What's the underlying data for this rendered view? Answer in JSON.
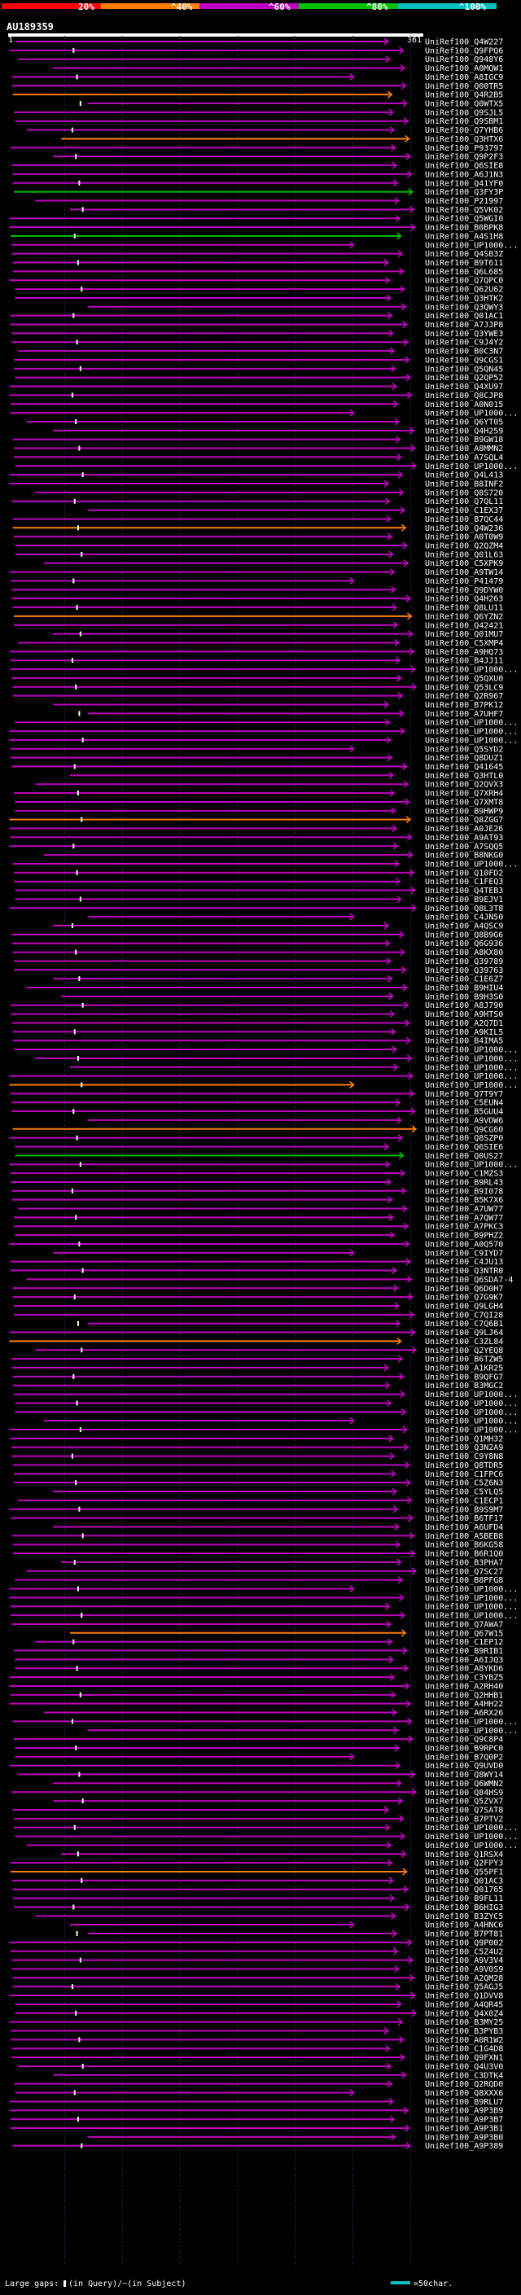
{
  "chart_data": {
    "type": "alignment-overview",
    "query": {
      "name": "AU189359",
      "start": 1,
      "end": 361
    },
    "identity_scale": {
      "ticks": [
        "20%",
        "^40%",
        "^60%",
        "^80%",
        "^100%"
      ],
      "colors": [
        "#ff0000",
        "#ff7f00",
        "#c000c0",
        "#00c000",
        "#00c0c0"
      ]
    },
    "hit_colors": {
      "default": "#c000c0",
      "high": "#ff7f00",
      "higher": "#00c000"
    },
    "legend": {
      "gaps_label": "Large gaps:",
      "query_gap": "(in Query)",
      "subject_gap": "(in Subject)",
      "scale_label": "=50char."
    },
    "hits": [
      "UniRef100_Q4W227",
      "UniRef100_Q9FPQ6",
      "UniRef100_Q948Y6",
      "UniRef100_A0MQW1",
      "UniRef100_A8IGC9",
      "UniRef100_Q00TR5",
      "UniRef100_Q4R2B5",
      "UniRef100_Q0WTX5",
      "UniRef100_Q9SJL5",
      "UniRef100_Q9SBM1",
      "UniRef100_Q7YHB6",
      "UniRef100_Q3HTX6",
      "UniRef100_P93797",
      "UniRef100_Q9P2F3",
      "UniRef100_Q6SIE8",
      "UniRef100_A6J1N3",
      "UniRef100_Q41YF0",
      "UniRef100_Q3FY3P",
      "UniRef100_P21997",
      "UniRef100_Q5VK02",
      "UniRef100_Q5WGI0",
      "UniRef100_B0BPK8",
      "UniRef100_A4S1H8",
      "UniRef100_UP1000...",
      "UniRef100_Q4SB3Z",
      "UniRef100_B9T611",
      "UniRef100_Q6L685",
      "UniRef100_Q7QPC0",
      "UniRef100_Q62U62",
      "UniRef100_Q3HTK2",
      "UniRef100_Q3QWY3",
      "UniRef100_Q01AC1",
      "UniRef100_A7JJP8",
      "UniRef100_Q3YWE3",
      "UniRef100_C9J4Y2",
      "UniRef100_B0C3N7",
      "UniRef100_Q9CGS1",
      "UniRef100_Q5QN45",
      "UniRef100_Q2QP52",
      "UniRef100_Q4XU97",
      "UniRef100_Q8CJP8",
      "UniRef100_A0N015",
      "UniRef100_UP1000...",
      "UniRef100_Q6YT05",
      "UniRef100_Q4H259",
      "UniRef100_B9GW18",
      "UniRef100_A8MMN2",
      "UniRef100_A7SQL4",
      "UniRef100_UP1000...",
      "UniRef100_Q4L413",
      "UniRef100_B8INF2",
      "UniRef100_Q8S720",
      "UniRef100_Q7QL11",
      "UniRef100_C1EX37",
      "UniRef100_B7QC44",
      "UniRef100_Q4W236",
      "UniRef100_A0T0W9",
      "UniRef100_Q2QZM4",
      "UniRef100_Q01L63",
      "UniRef100_C5XPK9",
      "UniRef100_A9TW14",
      "UniRef100_P41479",
      "UniRef100_Q9DYW0",
      "UniRef100_Q4H263",
      "UniRef100_Q8LU11",
      "UniRef100_Q6YZN2",
      "UniRef100_Q42421",
      "UniRef100_Q01MU7",
      "UniRef100_C5XMP4",
      "UniRef100_A9HQ73",
      "UniRef100_B4JJ11",
      "UniRef100_UP1000...",
      "UniRef100_Q5QXU0",
      "UniRef100_Q53LC9",
      "UniRef100_Q2R967",
      "UniRef100_B7PK12",
      "UniRef100_A7UHF7",
      "UniRef100_UP1000...",
      "UniRef100_UP1000...",
      "UniRef100_UP1000...",
      "UniRef100_Q5SYD2",
      "UniRef100_Q8DUZ1",
      "UniRef100_Q41645",
      "UniRef100_Q3HTL0",
      "UniRef100_Q2QVX3",
      "UniRef100_Q7XRH4",
      "UniRef100_Q7XMT8",
      "UniRef100_B9HWP9",
      "UniRef100_Q8ZGG7",
      "UniRef100_A0JE26",
      "UniRef100_A9AT93",
      "UniRef100_A7SQQ5",
      "UniRef100_B8NKG0",
      "UniRef100_UP1000...",
      "UniRef100_Q10FD2",
      "UniRef100_C1FEQ3",
      "UniRef100_Q4TEB3",
      "UniRef100_B9EJV1",
      "UniRef100_Q8L3T8",
      "UniRef100_C4JN50",
      "UniRef100_A4QSC9",
      "UniRef100_Q8B9G6",
      "UniRef100_Q6G936",
      "UniRef100_A8KX80",
      "UniRef100_Q39789",
      "UniRef100_Q39763",
      "UniRef100_C1E6Z7",
      "UniRef100_B9HIU4",
      "UniRef100_B9H3S0",
      "UniRef100_A8J790",
      "UniRef100_A9HTS0",
      "UniRef100_A2Q7D1",
      "UniRef100_A9KIL5",
      "UniRef100_B4IMA5",
      "UniRef100_UP1000...",
      "UniRef100_UP1000...",
      "UniRef100_UP1000...",
      "UniRef100_UP1000...",
      "UniRef100_UP1000...",
      "UniRef100_Q7T9Y7",
      "UniRef100_C5EUN4",
      "UniRef100_B5GUU4",
      "UniRef100_A9VDW6",
      "UniRef100_Q9CG60",
      "UniRef100_Q8SZP0",
      "UniRef100_Q6SIE6",
      "UniRef100_Q0US27",
      "UniRef100_UP1000...",
      "UniRef100_C1MZS3",
      "UniRef100_B9RL43",
      "UniRef100_B9I078",
      "UniRef100_B5K7X6",
      "UniRef100_A7UW77",
      "UniRef100_A7QW77",
      "UniRef100_A7PKC3",
      "UniRef100_B9PHZ2",
      "UniRef100_A0Q570",
      "UniRef100_C9IYD7",
      "UniRef100_C4JU13",
      "UniRef100_Q3NTR0",
      "UniRef100_Q6SDA7-4",
      "UniRef100_Q6D0H7",
      "UniRef100_Q7G9K7",
      "UniRef100_Q9LGH4",
      "UniRef100_C7QI28",
      "UniRef100_C7Q6B1",
      "UniRef100_Q9LJ64",
      "UniRef100_C3ZL84",
      "UniRef100_Q2YEQ8",
      "UniRef100_B6TZW5",
      "UniRef100_A1KR25",
      "UniRef100_B9QFG7",
      "UniRef100_B3MGC2",
      "UniRef100_UP1000...",
      "UniRef100_UP1000...",
      "UniRef100_UP1000...",
      "UniRef100_UP1000...",
      "UniRef100_UP1000...",
      "UniRef100_Q1MH32",
      "UniRef100_Q3N2A9",
      "UniRef100_C9Y8N8",
      "UniRef100_Q8TDR5",
      "UniRef100_C1FPC6",
      "UniRef100_C5Z6N3",
      "UniRef100_C5YLQ5",
      "UniRef100_C1ECP1",
      "UniRef100_B9S9M7",
      "UniRef100_B6TF17",
      "UniRef100_A6UFD4",
      "UniRef100_A5BEB8",
      "UniRef100_B6KG58",
      "UniRef100_B6R1Q0",
      "UniRef100_B3PHA7",
      "UniRef100_Q7SC27",
      "UniRef100_B8PFG8",
      "UniRef100_UP1000...",
      "UniRef100_UP1000...",
      "UniRef100_UP1000...",
      "UniRef100_UP1000...",
      "UniRef100_Q7AWA7",
      "UniRef100_Q67W15",
      "UniRef100_C1EP12",
      "UniRef100_B9RIB1",
      "UniRef100_A6IJQ3",
      "UniRef100_A8YKD6",
      "UniRef100_C3YBZ5",
      "UniRef100_A2RH40",
      "UniRef100_Q2HHB1",
      "UniRef100_A4HH22",
      "UniRef100_A6RX26",
      "UniRef100_UP1000...",
      "UniRef100_UP1000...",
      "UniRef100_Q9C8P4",
      "UniRef100_B9RPC0",
      "UniRef100_B7Q0P2",
      "UniRef100_Q9UVD0",
      "UniRef100_Q8WY14",
      "UniRef100_Q6WMN2",
      "UniRef100_Q84HS9",
      "UniRef100_Q5ZVX7",
      "UniRef100_Q7SAT8",
      "UniRef100_B7PTV2",
      "UniRef100_UP1000...",
      "UniRef100_UP1000...",
      "UniRef100_UP1000...",
      "UniRef100_Q1RSX4",
      "UniRef100_Q2FPY3",
      "UniRef100_Q55PF1",
      "UniRef100_Q01AC3",
      "UniRef100_Q01765",
      "UniRef100_B9FL11",
      "UniRef100_B6HIG3",
      "UniRef100_B3ZYC5",
      "UniRef100_A4HNC6",
      "UniRef100_B7PT81",
      "UniRef100_Q9P002",
      "UniRef100_C5Z4U2",
      "UniRef100_A9V3V4",
      "UniRef100_A9V0S9",
      "UniRef100_A2QM28",
      "UniRef100_Q5AGJ5",
      "UniRef100_Q1DVV8",
      "UniRef100_A4QR45",
      "UniRef100_Q4X0Z4",
      "UniRef100_B3MY25",
      "UniRef100_B3PYB3",
      "UniRef100_A0R1W2",
      "UniRef100_C1G4D8",
      "UniRef100_Q9FXN1",
      "UniRef100_Q4U3V0",
      "UniRef100_C3DTK4",
      "UniRef100_Q2RQD0",
      "UniRef100_Q8XXX6",
      "UniRef100_B9RLU7",
      "UniRef100_A9P3B9",
      "UniRef100_A9P3B7",
      "UniRef100_A9P3B1",
      "UniRef100_A9P3B0",
      "UniRef100_A9P389"
    ]
  }
}
